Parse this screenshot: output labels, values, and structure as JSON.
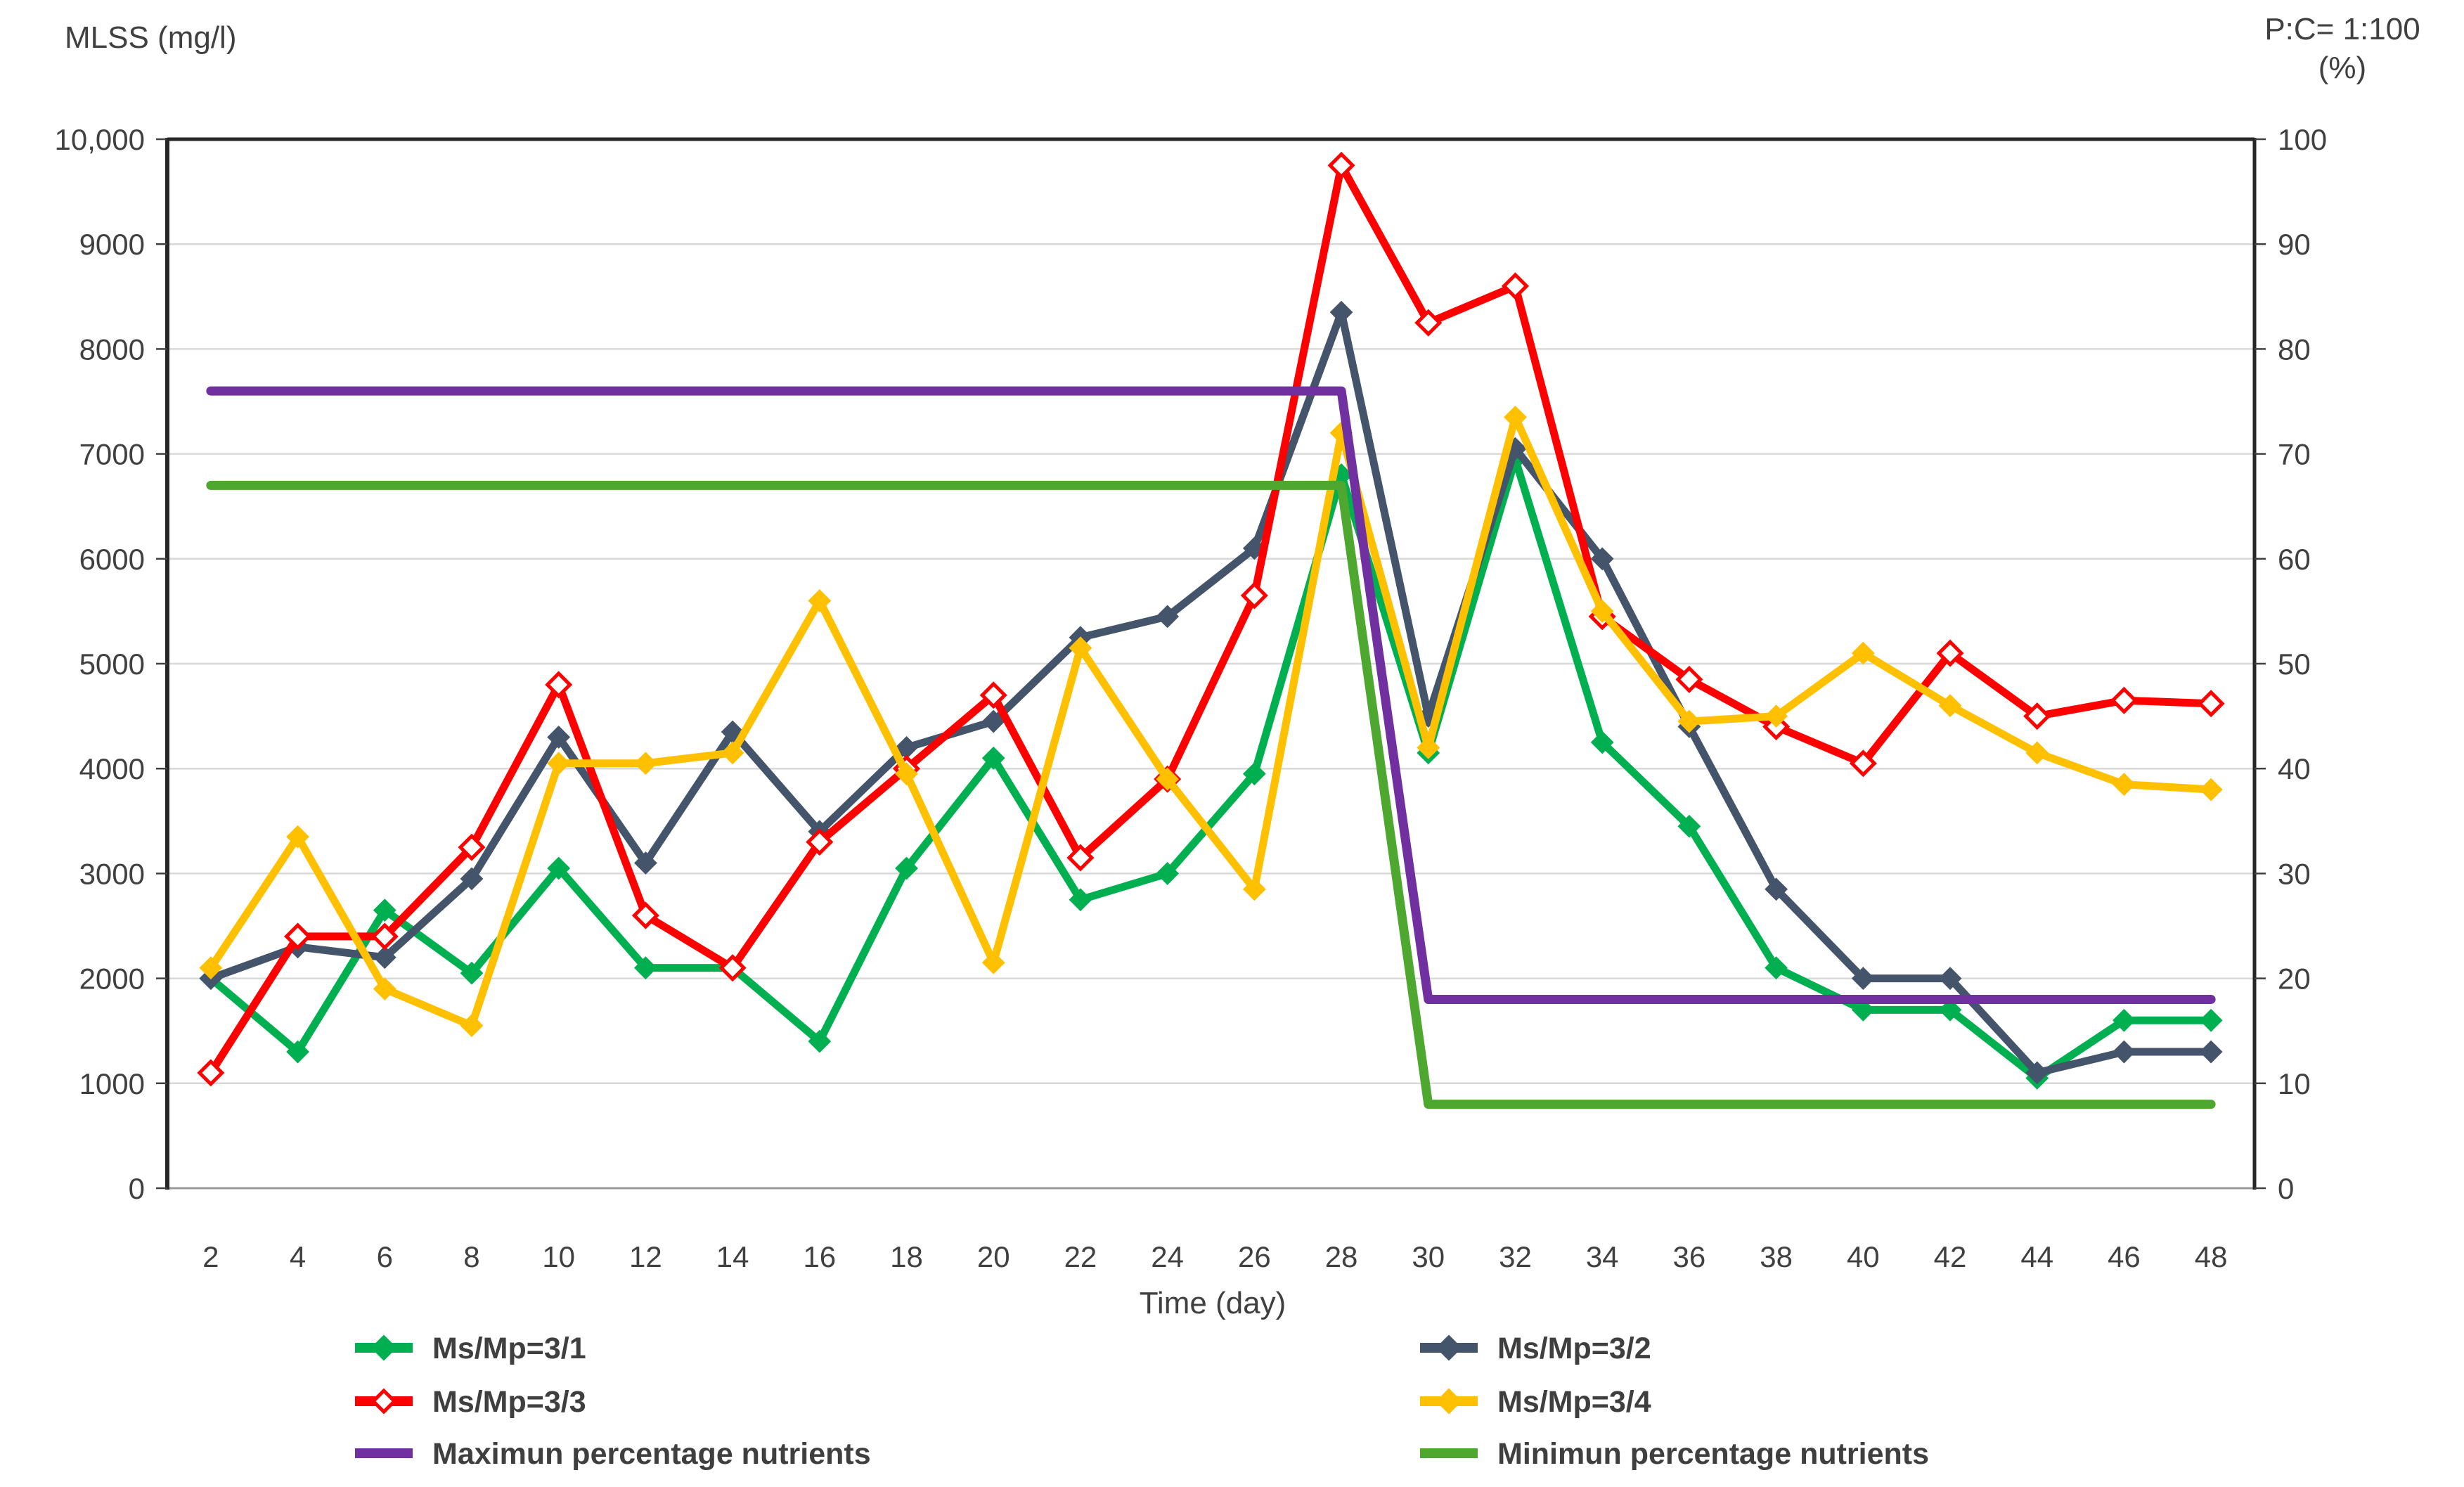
{
  "titles": {
    "left_axis": "MLSS (mg/l)",
    "right_axis_line1": "P:C= 1:100",
    "right_axis_line2": "(%)",
    "x_axis": "Time (day)"
  },
  "colors": {
    "grid": "#D9D9D9",
    "axis_dark": "#262626",
    "axis_bottom": "#9a9a9a",
    "tick_text": "#404040",
    "legend_text": "#3F3F3F",
    "background": "#FFFFFF"
  },
  "chart_data": {
    "type": "line",
    "title": "",
    "xlabel": "Time (day)",
    "ylabel_left": "MLSS (mg/l)",
    "ylabel_right": "P:C= 1:100 (%)",
    "ylim_left": [
      0,
      10000
    ],
    "ylim_right": [
      0,
      100
    ],
    "grid": true,
    "legend_position": "bottom",
    "x": [
      2,
      4,
      6,
      8,
      10,
      12,
      14,
      16,
      18,
      20,
      22,
      24,
      26,
      28,
      30,
      32,
      34,
      36,
      38,
      40,
      42,
      44,
      46,
      48
    ],
    "x_tick_labels": [
      "2",
      "4",
      "6",
      "8",
      "10",
      "12",
      "14",
      "16",
      "18",
      "20",
      "22",
      "24",
      "26",
      "28",
      "30",
      "32",
      "34",
      "36",
      "38",
      "40",
      "42",
      "44",
      "46",
      "48"
    ],
    "left_tick_labels": [
      "0",
      "1000",
      "2000",
      "3000",
      "4000",
      "5000",
      "6000",
      "7000",
      "8000",
      "9000",
      "10,000"
    ],
    "right_tick_labels": [
      "0",
      "10",
      "20",
      "30",
      "40",
      "50",
      "60",
      "70",
      "80",
      "90",
      "100"
    ],
    "series": [
      {
        "name": "Ms/Mp=3/1",
        "color": "#00B050",
        "axis": "left",
        "marker": "diamond",
        "values": [
          2000,
          1300,
          2650,
          2050,
          3050,
          2100,
          2100,
          1400,
          3050,
          4100,
          2750,
          3000,
          3950,
          6800,
          4150,
          6950,
          4250,
          3450,
          2100,
          1700,
          1700,
          1050,
          1600,
          1600
        ]
      },
      {
        "name": "Ms/Mp=3/2",
        "color": "#44546A",
        "axis": "left",
        "marker": "diamond",
        "values": [
          2000,
          2300,
          2200,
          2950,
          4300,
          3100,
          4350,
          3400,
          4200,
          4450,
          5250,
          5450,
          6100,
          8350,
          4500,
          7050,
          6000,
          4400,
          2850,
          2000,
          2000,
          1100,
          1300,
          1300
        ]
      },
      {
        "name": "Ms/Mp=3/3",
        "color": "#FF0000",
        "axis": "left",
        "marker": "diamond-open",
        "values": [
          1100,
          2400,
          2400,
          3250,
          4800,
          2600,
          2100,
          3300,
          4000,
          4700,
          3150,
          3900,
          5650,
          9750,
          8250,
          8600,
          5450,
          4850,
          4400,
          4050,
          5100,
          4500,
          4650,
          4620
        ]
      },
      {
        "name": "Ms/Mp=3/4",
        "color": "#FFC000",
        "axis": "left",
        "marker": "diamond",
        "values": [
          2100,
          3350,
          1900,
          1550,
          4050,
          4050,
          4150,
          5600,
          3950,
          2150,
          5150,
          3900,
          2850,
          7200,
          4200,
          7350,
          5500,
          4450,
          4500,
          5100,
          4600,
          4150,
          3850,
          3800
        ]
      },
      {
        "name": "Maximun percentage nutrients",
        "color": "#7030A0",
        "axis": "right",
        "marker": "none",
        "values": [
          76,
          76,
          76,
          76,
          76,
          76,
          76,
          76,
          76,
          76,
          76,
          76,
          76,
          76,
          18,
          18,
          18,
          18,
          18,
          18,
          18,
          18,
          18,
          18
        ]
      },
      {
        "name": "Minimun percentage nutrients",
        "color": "#4EA72E",
        "axis": "right",
        "marker": "none",
        "values": [
          67,
          67,
          67,
          67,
          67,
          67,
          67,
          67,
          67,
          67,
          67,
          67,
          67,
          67,
          8,
          8,
          8,
          8,
          8,
          8,
          8,
          8,
          8,
          8
        ]
      }
    ],
    "legend_rows": [
      [
        0,
        1
      ],
      [
        2,
        3
      ],
      [
        4,
        5
      ]
    ]
  }
}
